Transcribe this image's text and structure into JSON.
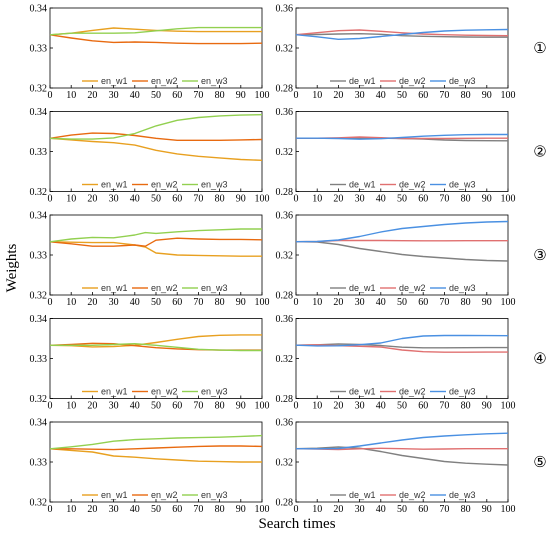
{
  "ylabel": "Weights",
  "xlabel": "Search times",
  "colors": {
    "en_w1": "#e8a020",
    "en_w2": "#e86a10",
    "en_w3": "#92d050",
    "de_w1": "#808080",
    "de_w2": "#e07070",
    "de_w3": "#4a90e2"
  },
  "chart_data": [
    {
      "type": "line",
      "row": 1,
      "side": "left",
      "marker": "",
      "x_ticks": [
        "0",
        "10",
        "20",
        "30",
        "40",
        "50",
        "60",
        "70",
        "80",
        "90",
        "100"
      ],
      "ylim": [
        0.32,
        0.34
      ],
      "y_ticks": [
        "0.32",
        "0.33",
        "0.34"
      ],
      "series": [
        {
          "name": "en_w1",
          "x": [
            0,
            10,
            20,
            30,
            40,
            50,
            60,
            70,
            80,
            90,
            100
          ],
          "y": [
            0.3333,
            0.3337,
            0.3344,
            0.335,
            0.3347,
            0.3344,
            0.3342,
            0.3341,
            0.3341,
            0.3341,
            0.3341
          ]
        },
        {
          "name": "en_w2",
          "x": [
            0,
            10,
            20,
            30,
            40,
            50,
            60,
            70,
            80,
            90,
            100
          ],
          "y": [
            0.3333,
            0.3325,
            0.3318,
            0.3314,
            0.3315,
            0.3314,
            0.3312,
            0.3311,
            0.3311,
            0.3311,
            0.3312
          ]
        },
        {
          "name": "en_w3",
          "x": [
            0,
            10,
            20,
            30,
            40,
            50,
            60,
            70,
            80,
            90,
            100
          ],
          "y": [
            0.3333,
            0.3337,
            0.3337,
            0.3337,
            0.3338,
            0.3343,
            0.3348,
            0.3351,
            0.3351,
            0.3351,
            0.3351
          ]
        }
      ]
    },
    {
      "type": "line",
      "row": 1,
      "side": "right",
      "marker": "①",
      "x_ticks": [
        "0",
        "10",
        "20",
        "30",
        "40",
        "50",
        "60",
        "70",
        "80",
        "90",
        "100"
      ],
      "ylim": [
        0.28,
        0.36
      ],
      "y_ticks": [
        "0.28",
        "0.32",
        "0.36"
      ],
      "series": [
        {
          "name": "de_w1",
          "x": [
            0,
            10,
            20,
            30,
            40,
            50,
            60,
            70,
            80,
            90,
            100
          ],
          "y": [
            0.3333,
            0.3335,
            0.334,
            0.3343,
            0.3337,
            0.3323,
            0.3317,
            0.3313,
            0.331,
            0.3308,
            0.3308
          ]
        },
        {
          "name": "de_w2",
          "x": [
            0,
            10,
            20,
            30,
            40,
            50,
            60,
            70,
            80,
            90,
            100
          ],
          "y": [
            0.3333,
            0.3353,
            0.3373,
            0.338,
            0.3367,
            0.3352,
            0.334,
            0.3333,
            0.3328,
            0.3325,
            0.3323
          ]
        },
        {
          "name": "de_w3",
          "x": [
            0,
            10,
            20,
            30,
            40,
            50,
            60,
            70,
            80,
            90,
            100
          ],
          "y": [
            0.3333,
            0.3312,
            0.3287,
            0.3295,
            0.3315,
            0.3335,
            0.3355,
            0.337,
            0.3378,
            0.3382,
            0.3385
          ]
        }
      ]
    },
    {
      "type": "line",
      "row": 2,
      "side": "left",
      "marker": "",
      "x_ticks": [
        "0",
        "10",
        "20",
        "30",
        "40",
        "50",
        "60",
        "70",
        "80",
        "90",
        "100"
      ],
      "ylim": [
        0.32,
        0.34
      ],
      "y_ticks": [
        "0.32",
        "0.33",
        "0.34"
      ],
      "series": [
        {
          "name": "en_w1",
          "x": [
            0,
            10,
            20,
            30,
            40,
            50,
            60,
            70,
            80,
            90,
            100
          ],
          "y": [
            0.3333,
            0.3329,
            0.3325,
            0.3322,
            0.3316,
            0.3303,
            0.3294,
            0.3288,
            0.3284,
            0.328,
            0.3278
          ]
        },
        {
          "name": "en_w2",
          "x": [
            0,
            10,
            20,
            30,
            40,
            50,
            60,
            70,
            80,
            90,
            100
          ],
          "y": [
            0.3333,
            0.3341,
            0.3346,
            0.3345,
            0.334,
            0.3333,
            0.3328,
            0.3328,
            0.3328,
            0.3329,
            0.333
          ]
        },
        {
          "name": "en_w3",
          "x": [
            0,
            10,
            20,
            30,
            40,
            50,
            60,
            70,
            80,
            90,
            100
          ],
          "y": [
            0.3333,
            0.3331,
            0.3331,
            0.3334,
            0.3345,
            0.3364,
            0.3378,
            0.3385,
            0.3389,
            0.3391,
            0.3392
          ]
        }
      ]
    },
    {
      "type": "line",
      "row": 2,
      "side": "right",
      "marker": "②",
      "x_ticks": [
        "0",
        "10",
        "20",
        "30",
        "40",
        "50",
        "60",
        "70",
        "80",
        "90",
        "100"
      ],
      "ylim": [
        0.28,
        0.36
      ],
      "y_ticks": [
        "0.28",
        "0.32",
        "0.36"
      ],
      "series": [
        {
          "name": "de_w1",
          "x": [
            0,
            10,
            20,
            30,
            40,
            50,
            60,
            70,
            80,
            90,
            100
          ],
          "y": [
            0.3333,
            0.3333,
            0.3333,
            0.3337,
            0.3333,
            0.333,
            0.3325,
            0.3315,
            0.331,
            0.3308,
            0.3307
          ]
        },
        {
          "name": "de_w2",
          "x": [
            0,
            10,
            20,
            30,
            40,
            50,
            60,
            70,
            80,
            90,
            100
          ],
          "y": [
            0.3333,
            0.3333,
            0.3337,
            0.3345,
            0.3338,
            0.333,
            0.333,
            0.333,
            0.3332,
            0.3333,
            0.3333
          ]
        },
        {
          "name": "de_w3",
          "x": [
            0,
            10,
            20,
            30,
            40,
            50,
            60,
            70,
            80,
            90,
            100
          ],
          "y": [
            0.3333,
            0.3333,
            0.333,
            0.3323,
            0.3328,
            0.334,
            0.3353,
            0.3362,
            0.3368,
            0.337,
            0.337
          ]
        }
      ]
    },
    {
      "type": "line",
      "row": 3,
      "side": "left",
      "marker": "",
      "x_ticks": [
        "0",
        "10",
        "20",
        "30",
        "40",
        "50",
        "60",
        "70",
        "80",
        "90",
        "100"
      ],
      "ylim": [
        0.32,
        0.34
      ],
      "y_ticks": [
        "0.32",
        "0.33",
        "0.34"
      ],
      "series": [
        {
          "name": "en_w1",
          "x": [
            0,
            10,
            20,
            30,
            40,
            45,
            50,
            60,
            70,
            80,
            90,
            100
          ],
          "y": [
            0.3333,
            0.3332,
            0.3331,
            0.3331,
            0.3325,
            0.332,
            0.3305,
            0.33,
            0.3299,
            0.3298,
            0.3297,
            0.3297
          ]
        },
        {
          "name": "en_w2",
          "x": [
            0,
            10,
            20,
            30,
            40,
            45,
            50,
            60,
            70,
            80,
            90,
            100
          ],
          "y": [
            0.3333,
            0.3328,
            0.3322,
            0.3322,
            0.3325,
            0.3322,
            0.3337,
            0.3342,
            0.334,
            0.3339,
            0.3339,
            0.3338
          ]
        },
        {
          "name": "en_w3",
          "x": [
            0,
            10,
            20,
            30,
            40,
            45,
            50,
            60,
            70,
            80,
            90,
            100
          ],
          "y": [
            0.3333,
            0.334,
            0.3344,
            0.3343,
            0.335,
            0.3356,
            0.3354,
            0.3358,
            0.3361,
            0.3363,
            0.3365,
            0.3365
          ]
        }
      ]
    },
    {
      "type": "line",
      "row": 3,
      "side": "right",
      "marker": "③",
      "x_ticks": [
        "0",
        "10",
        "20",
        "30",
        "40",
        "50",
        "60",
        "70",
        "80",
        "90",
        "100"
      ],
      "ylim": [
        0.28,
        0.36
      ],
      "y_ticks": [
        "0.28",
        "0.32",
        "0.36"
      ],
      "series": [
        {
          "name": "de_w1",
          "x": [
            0,
            10,
            20,
            30,
            40,
            50,
            60,
            70,
            80,
            90,
            100
          ],
          "y": [
            0.3333,
            0.333,
            0.3305,
            0.3265,
            0.3235,
            0.3205,
            0.3185,
            0.317,
            0.3155,
            0.3145,
            0.314
          ]
        },
        {
          "name": "de_w2",
          "x": [
            0,
            10,
            20,
            30,
            40,
            50,
            60,
            70,
            80,
            90,
            100
          ],
          "y": [
            0.3333,
            0.3335,
            0.3345,
            0.3345,
            0.3345,
            0.3343,
            0.3342,
            0.3342,
            0.3343,
            0.3343,
            0.3343
          ]
        },
        {
          "name": "de_w3",
          "x": [
            0,
            10,
            20,
            30,
            40,
            50,
            60,
            70,
            80,
            90,
            100
          ],
          "y": [
            0.3333,
            0.3335,
            0.335,
            0.3385,
            0.343,
            0.3465,
            0.3485,
            0.3505,
            0.352,
            0.353,
            0.3535
          ]
        }
      ]
    },
    {
      "type": "line",
      "row": 4,
      "side": "left",
      "marker": "",
      "x_ticks": [
        "0",
        "10",
        "20",
        "30",
        "40",
        "50",
        "60",
        "70",
        "80",
        "90",
        "100"
      ],
      "ylim": [
        0.32,
        0.34
      ],
      "y_ticks": [
        "0.32",
        "0.33",
        "0.34"
      ],
      "series": [
        {
          "name": "en_w1",
          "x": [
            0,
            10,
            20,
            30,
            40,
            50,
            60,
            70,
            80,
            90,
            100
          ],
          "y": [
            0.3333,
            0.3332,
            0.3329,
            0.333,
            0.3333,
            0.334,
            0.3348,
            0.3355,
            0.3358,
            0.3359,
            0.3359
          ]
        },
        {
          "name": "en_w2",
          "x": [
            0,
            10,
            20,
            30,
            40,
            50,
            60,
            70,
            80,
            90,
            100
          ],
          "y": [
            0.3333,
            0.3335,
            0.3338,
            0.3337,
            0.3332,
            0.3327,
            0.3324,
            0.3322,
            0.3321,
            0.3321,
            0.3321
          ]
        },
        {
          "name": "en_w3",
          "x": [
            0,
            10,
            20,
            30,
            40,
            50,
            60,
            70,
            80,
            90,
            100
          ],
          "y": [
            0.3333,
            0.3333,
            0.3333,
            0.3335,
            0.3337,
            0.3333,
            0.3328,
            0.3323,
            0.3321,
            0.332,
            0.332
          ]
        }
      ]
    },
    {
      "type": "line",
      "row": 4,
      "side": "right",
      "marker": "④",
      "x_ticks": [
        "0",
        "10",
        "20",
        "30",
        "40",
        "50",
        "60",
        "70",
        "80",
        "90",
        "100"
      ],
      "ylim": [
        0.28,
        0.36
      ],
      "y_ticks": [
        "0.28",
        "0.32",
        "0.36"
      ],
      "series": [
        {
          "name": "de_w1",
          "x": [
            0,
            10,
            20,
            30,
            40,
            50,
            60,
            70,
            80,
            90,
            100
          ],
          "y": [
            0.3333,
            0.3337,
            0.3345,
            0.334,
            0.333,
            0.3313,
            0.3307,
            0.3307,
            0.3308,
            0.3309,
            0.3309
          ]
        },
        {
          "name": "de_w2",
          "x": [
            0,
            10,
            20,
            30,
            40,
            50,
            60,
            70,
            80,
            90,
            100
          ],
          "y": [
            0.3333,
            0.3337,
            0.3328,
            0.3322,
            0.3315,
            0.3285,
            0.3268,
            0.3263,
            0.3263,
            0.3264,
            0.3264
          ]
        },
        {
          "name": "de_w3",
          "x": [
            0,
            10,
            20,
            30,
            40,
            50,
            60,
            70,
            80,
            90,
            100
          ],
          "y": [
            0.3333,
            0.3326,
            0.3327,
            0.3338,
            0.3355,
            0.34,
            0.3425,
            0.343,
            0.343,
            0.3429,
            0.3428
          ]
        }
      ]
    },
    {
      "type": "line",
      "row": 5,
      "side": "left",
      "marker": "",
      "x_ticks": [
        "0",
        "10",
        "20",
        "30",
        "40",
        "50",
        "60",
        "70",
        "80",
        "90",
        "100"
      ],
      "ylim": [
        0.32,
        0.34
      ],
      "y_ticks": [
        "0.32",
        "0.33",
        "0.34"
      ],
      "series": [
        {
          "name": "en_w1",
          "x": [
            0,
            10,
            20,
            30,
            40,
            50,
            60,
            70,
            80,
            90,
            100
          ],
          "y": [
            0.3333,
            0.3329,
            0.3325,
            0.3315,
            0.3312,
            0.3308,
            0.3305,
            0.3302,
            0.3301,
            0.33,
            0.33
          ]
        },
        {
          "name": "en_w2",
          "x": [
            0,
            10,
            20,
            30,
            40,
            50,
            60,
            70,
            80,
            90,
            100
          ],
          "y": [
            0.3333,
            0.3333,
            0.3332,
            0.3331,
            0.3333,
            0.3335,
            0.3337,
            0.3339,
            0.334,
            0.334,
            0.3339
          ]
        },
        {
          "name": "en_w3",
          "x": [
            0,
            10,
            20,
            30,
            40,
            50,
            60,
            70,
            80,
            90,
            100
          ],
          "y": [
            0.3333,
            0.3338,
            0.3344,
            0.3352,
            0.3356,
            0.3358,
            0.336,
            0.3361,
            0.3362,
            0.3364,
            0.3366
          ]
        }
      ]
    },
    {
      "type": "line",
      "row": 5,
      "side": "right",
      "marker": "⑤",
      "x_ticks": [
        "0",
        "10",
        "20",
        "30",
        "40",
        "50",
        "60",
        "70",
        "80",
        "90",
        "100"
      ],
      "ylim": [
        0.28,
        0.36
      ],
      "y_ticks": [
        "0.28",
        "0.32",
        "0.36"
      ],
      "series": [
        {
          "name": "de_w1",
          "x": [
            0,
            10,
            20,
            30,
            40,
            50,
            60,
            70,
            80,
            90,
            100
          ],
          "y": [
            0.3333,
            0.3338,
            0.335,
            0.3338,
            0.3305,
            0.3265,
            0.3235,
            0.3205,
            0.3188,
            0.3178,
            0.317
          ]
        },
        {
          "name": "de_w2",
          "x": [
            0,
            10,
            20,
            30,
            40,
            50,
            60,
            70,
            80,
            90,
            100
          ],
          "y": [
            0.3333,
            0.333,
            0.3325,
            0.3332,
            0.3337,
            0.3333,
            0.3328,
            0.333,
            0.3333,
            0.3333,
            0.3333
          ]
        },
        {
          "name": "de_w3",
          "x": [
            0,
            10,
            20,
            30,
            40,
            50,
            60,
            70,
            80,
            90,
            100
          ],
          "y": [
            0.3333,
            0.3332,
            0.3335,
            0.336,
            0.339,
            0.342,
            0.3445,
            0.346,
            0.3472,
            0.3482,
            0.3488
          ]
        }
      ]
    }
  ]
}
